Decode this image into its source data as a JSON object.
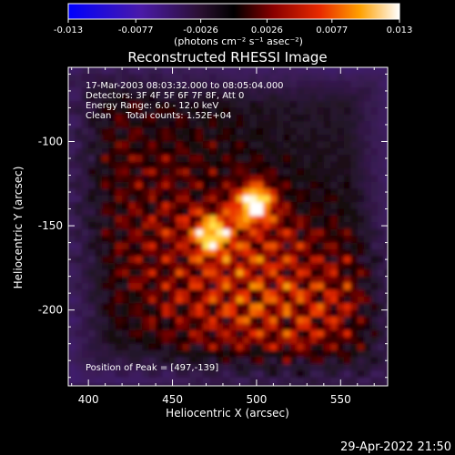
{
  "colorbar": {
    "ticks": [
      "-0.013",
      "-0.0077",
      "-0.0026",
      "0.0026",
      "0.0077",
      "0.013"
    ],
    "units": "(photons cm⁻² s⁻¹ asec⁻²)",
    "range": [
      -0.013,
      0.013
    ]
  },
  "chart_data": {
    "type": "heatmap",
    "title": "Reconstructed RHESSI Image",
    "xlabel": "Heliocentric X (arcsec)",
    "ylabel": "Heliocentric Y (arcsec)",
    "xlim": [
      388,
      578
    ],
    "ylim": [
      -245,
      -56
    ],
    "x_ticks": [
      400,
      450,
      500,
      550
    ],
    "y_ticks": [
      -100,
      -150,
      -200
    ],
    "info_lines": [
      "17-Mar-2003 08:03:32.000 to 08:05:04.000",
      "Detectors: 3F 4F 5F 6F 7F 8F, Att 0",
      "Energy Range: 6.0 - 12.0 keV",
      "Clean     Total counts: 1.52E+04"
    ],
    "peak_label": "Position of Peak = [497,-139]",
    "sources": [
      {
        "x": 497,
        "y": -139,
        "value": 0.013
      },
      {
        "x": 472,
        "y": -157,
        "value": 0.0095
      }
    ],
    "colormap": "rhessi-purple-red-yellow-white"
  },
  "footer": {
    "date": "29-Apr-2022 21:50"
  }
}
